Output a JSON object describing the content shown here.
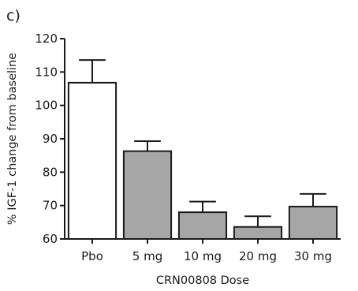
{
  "chart_data": {
    "type": "bar",
    "panel_label": "c)",
    "categories": [
      "Pbo",
      "5 mg",
      "10 mg",
      "20 mg",
      "30 mg"
    ],
    "values": [
      106.8,
      86.3,
      68.0,
      63.6,
      69.7
    ],
    "error_upper": [
      113.6,
      89.3,
      71.2,
      66.8,
      73.5
    ],
    "bar_colors": [
      "#ffffff",
      "#a6a6a6",
      "#a6a6a6",
      "#a6a6a6",
      "#a6a6a6"
    ],
    "xlabel": "CRN00808 Dose",
    "ylabel": "% IGF-1 change from baseline",
    "ylim": [
      60,
      120
    ],
    "yticks": [
      60,
      70,
      80,
      90,
      100,
      110,
      120
    ],
    "grid": false,
    "legend": "none"
  }
}
